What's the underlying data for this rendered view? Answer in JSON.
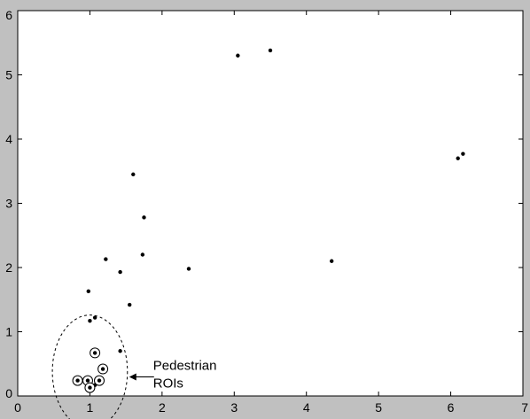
{
  "chart_data": {
    "type": "scatter",
    "title": "",
    "xlabel": "",
    "ylabel": "",
    "xlim": [
      0,
      7
    ],
    "ylim": [
      0,
      6
    ],
    "xticks": [
      "0",
      "1",
      "2",
      "3",
      "4",
      "5",
      "6",
      "7"
    ],
    "yticks": [
      "0",
      "1",
      "2",
      "3",
      "4",
      "5",
      "6"
    ],
    "grid": false,
    "series": [
      {
        "marker": "dot",
        "color": "#000000",
        "points": [
          {
            "x": 3.05,
            "y": 5.3
          },
          {
            "x": 3.5,
            "y": 5.38
          },
          {
            "x": 6.1,
            "y": 3.7
          },
          {
            "x": 6.17,
            "y": 3.77
          },
          {
            "x": 1.6,
            "y": 3.45
          },
          {
            "x": 1.75,
            "y": 2.78
          },
          {
            "x": 1.73,
            "y": 2.2
          },
          {
            "x": 1.22,
            "y": 2.13
          },
          {
            "x": 2.37,
            "y": 1.98
          },
          {
            "x": 1.42,
            "y": 1.93
          },
          {
            "x": 4.35,
            "y": 2.1
          },
          {
            "x": 0.98,
            "y": 1.63
          },
          {
            "x": 1.55,
            "y": 1.42
          },
          {
            "x": 1.07,
            "y": 1.22
          },
          {
            "x": 1.0,
            "y": 1.17
          },
          {
            "x": 1.42,
            "y": 0.7
          },
          {
            "x": 1.07,
            "y": 0.17
          },
          {
            "x": 1.03,
            "y": 0.12
          }
        ]
      },
      {
        "marker": "circled-dot",
        "color": "#000000",
        "points": [
          {
            "x": 1.07,
            "y": 0.67
          },
          {
            "x": 1.18,
            "y": 0.42
          },
          {
            "x": 0.83,
            "y": 0.24
          },
          {
            "x": 0.97,
            "y": 0.24
          },
          {
            "x": 1.13,
            "y": 0.24
          },
          {
            "x": 1.0,
            "y": 0.13
          }
        ]
      }
    ],
    "annotations": [
      {
        "text_lines": [
          "Pedestrian",
          "ROIs"
        ],
        "target_center": {
          "x": 1.0,
          "y": 0.38
        },
        "target_radius": {
          "x": 0.52,
          "y": 0.88
        }
      }
    ]
  }
}
